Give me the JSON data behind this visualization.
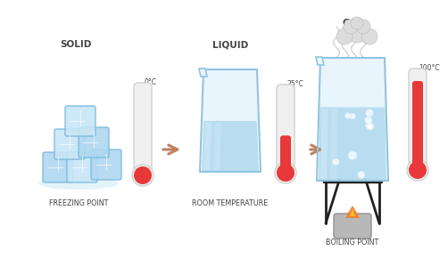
{
  "background_color": "#ffffff",
  "title_solid": "SOLID",
  "title_liquid": "LIQUID",
  "title_gas": "GAS",
  "label_freezing": "FREEZING POINT",
  "label_room": "ROOM TEMPERATURE",
  "label_boiling": "BOILING POINT",
  "temp_0": "0°C",
  "temp_25": "25°C",
  "temp_100": "100°C",
  "ice_color_light": "#c8e6f5",
  "ice_color_mid": "#b0d8f0",
  "ice_color_dark": "#95c8e8",
  "ice_edge": "#7ab8dc",
  "ice_pool": "#d8eef8",
  "water_fill": "#b8ddf0",
  "water_light": "#cce8f5",
  "beaker_edge": "#90c4e0",
  "beaker_bg": "#e8f5fd",
  "therm_bg": "#f0f0f0",
  "therm_edge": "#d0d0d0",
  "mercury_red": "#e8383a",
  "arrow_color": "#c08060",
  "text_dark": "#444444",
  "steam_color": "#c8c8c8",
  "cloud_fill": "#dcdcdc",
  "cloud_edge": "#c0c0c0",
  "flame_orange": "#f08030",
  "flame_yellow": "#f8c820",
  "stand_color": "#202020",
  "burner_color": "#b8b8b8",
  "burner_edge": "#909090",
  "bubble_edge": "#d0eaf8"
}
